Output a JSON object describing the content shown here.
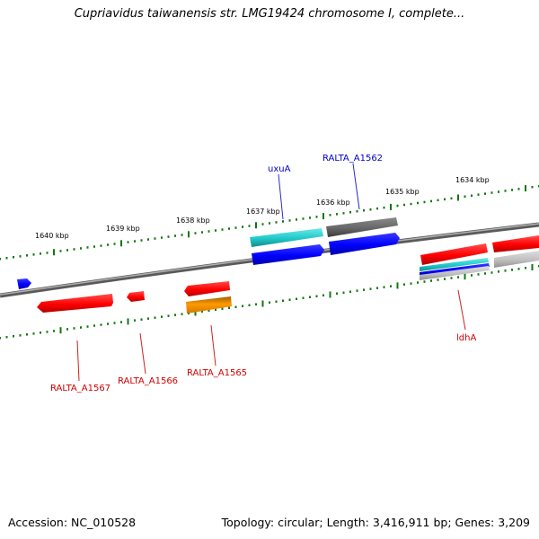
{
  "title": "Cupriavidus taiwanensis str. LMG19424 chromosome I, complete...",
  "footer": {
    "accession_label": "Accession: NC_010528",
    "summary_label": "Topology: circular; Length: 3,416,911 bp; Genes: 3,209"
  },
  "scale_labels": [
    "1640 kbp",
    "1639 kbp",
    "1638 kbp",
    "1637 kbp",
    "1636 kbp",
    "1635 kbp",
    "1634 kbp"
  ],
  "gene_labels": [
    {
      "id": "uxuA",
      "text": "uxuA",
      "color": "#0000cc"
    },
    {
      "id": "ralta-a1562",
      "text": "RALTA_A1562",
      "color": "#0000cc"
    },
    {
      "id": "ldha",
      "text": "ldhA",
      "color": "#cc0000"
    },
    {
      "id": "ralta-a1567",
      "text": "RALTA_A1567",
      "color": "#cc0000"
    },
    {
      "id": "ralta-a1566",
      "text": "RALTA_A1566",
      "color": "#cc0000"
    },
    {
      "id": "ralta-a1565",
      "text": "RALTA_A1565",
      "color": "#cc0000"
    }
  ],
  "colors": {
    "forward_cds": "#ff0000",
    "reverse_cds": "#0000ff",
    "teal_feature": "#20c8c8",
    "gray_feature": "#666666",
    "light_gray_feature": "#c0c0c0",
    "orange_feature": "#ff9900",
    "ruler_ticks": "#117711",
    "backbone": "#777777"
  }
}
